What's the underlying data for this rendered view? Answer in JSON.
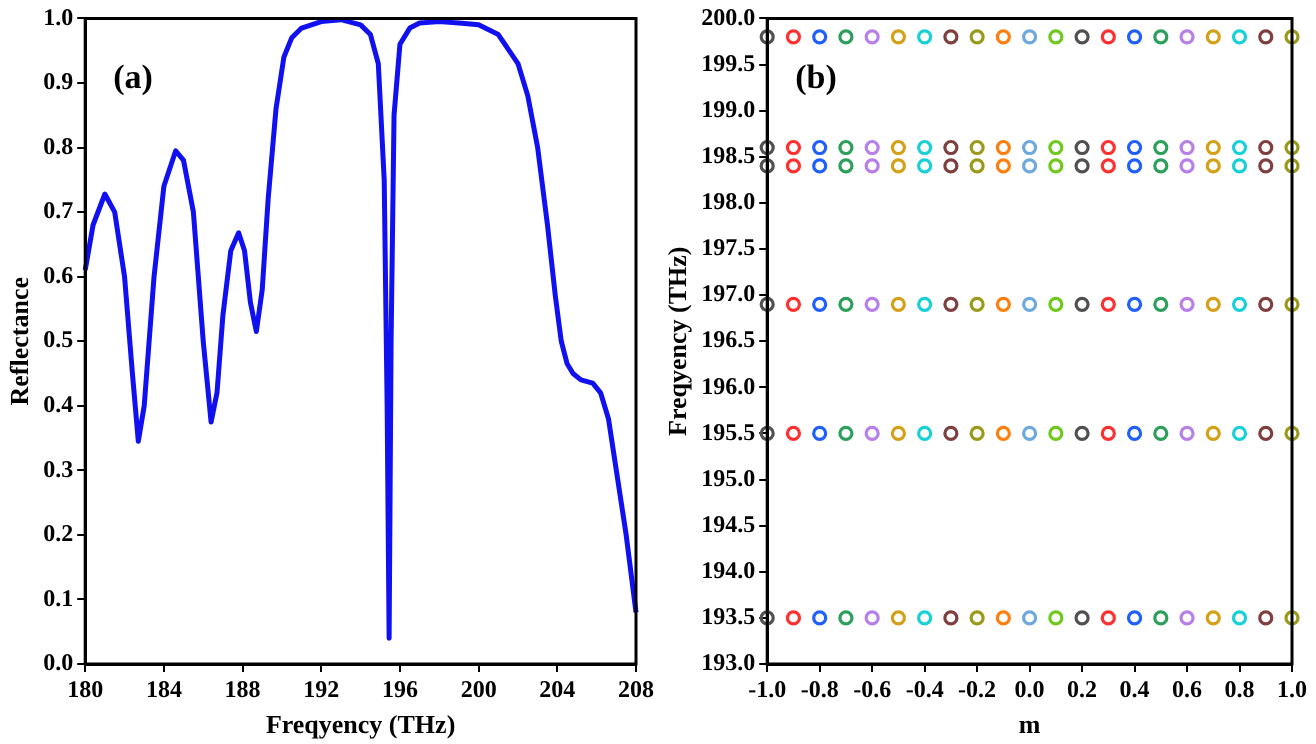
{
  "chart_data": [
    {
      "type": "line",
      "xlabel": "Freqyency (THz)",
      "ylabel": "Reflectance",
      "annotations": [
        "(a)"
      ],
      "grid": false,
      "legend": false,
      "marker": "none",
      "line_style": "solid",
      "xlim": [
        180,
        208
      ],
      "xticks": [
        180,
        184,
        188,
        192,
        196,
        200,
        204,
        208
      ],
      "ylim": [
        0,
        1
      ],
      "yticks": [
        {
          "value": 0,
          "label": "0.0"
        },
        0.1,
        0.2,
        0.3,
        0.4,
        0.5,
        0.6,
        0.7,
        0.8,
        0.9,
        {
          "value": 1,
          "label": "1.0"
        }
      ],
      "series": [
        {
          "color": "#1010f0",
          "x": [
            180,
            180.4,
            181,
            181.5,
            182,
            182.4,
            182.7,
            183,
            183.5,
            184,
            184.6,
            185,
            185.5,
            186,
            186.4,
            186.7,
            187,
            187.4,
            187.8,
            188.1,
            188.4,
            188.7,
            189,
            189.3,
            189.7,
            190.1,
            190.5,
            191,
            192,
            193,
            194,
            194.5,
            194.9,
            195.2,
            195.35,
            195.45,
            195.55,
            195.7,
            196,
            196.5,
            197,
            198,
            199,
            200,
            201,
            202,
            202.5,
            203,
            203.5,
            203.9,
            204.2,
            204.5,
            204.8,
            205.2,
            205.8,
            206.2,
            206.6,
            207,
            207.5,
            208
          ],
          "values": [
            0.61,
            0.68,
            0.728,
            0.7,
            0.6,
            0.45,
            0.345,
            0.4,
            0.6,
            0.74,
            0.795,
            0.78,
            0.7,
            0.5,
            0.375,
            0.42,
            0.54,
            0.64,
            0.668,
            0.64,
            0.56,
            0.515,
            0.58,
            0.72,
            0.86,
            0.94,
            0.97,
            0.985,
            0.995,
            0.998,
            0.99,
            0.975,
            0.93,
            0.75,
            0.4,
            0.04,
            0.5,
            0.85,
            0.96,
            0.985,
            0.993,
            0.995,
            0.993,
            0.99,
            0.975,
            0.93,
            0.88,
            0.8,
            0.68,
            0.57,
            0.5,
            0.465,
            0.45,
            0.44,
            0.435,
            0.42,
            0.38,
            0.3,
            0.2,
            0.08
          ]
        }
      ]
    },
    {
      "type": "scatter",
      "xlabel": "m",
      "ylabel": "Freqyency (THz)",
      "annotations": [
        "(b)"
      ],
      "grid": false,
      "legend": false,
      "marker": "circle",
      "xlim": [
        -1,
        1
      ],
      "xticks": [
        {
          "value": -1,
          "label": "-1.0"
        },
        -0.8,
        -0.6,
        -0.4,
        -0.2,
        {
          "value": 0,
          "label": "0.0"
        },
        0.2,
        0.4,
        0.6,
        0.8,
        {
          "value": 1,
          "label": "1.0"
        }
      ],
      "ylim": [
        193,
        200
      ],
      "yticks": [
        {
          "value": 193,
          "label": "193.0"
        },
        193.5,
        {
          "value": 194,
          "label": "194.0"
        },
        194.5,
        {
          "value": 195,
          "label": "195.0"
        },
        195.5,
        {
          "value": 196,
          "label": "196.0"
        },
        196.5,
        {
          "value": 197,
          "label": "197.0"
        },
        197.5,
        {
          "value": 198,
          "label": "198.0"
        },
        198.5,
        {
          "value": 199,
          "label": "199.0"
        },
        199.5,
        {
          "value": 200,
          "label": "200.0"
        }
      ],
      "series": [
        {
          "color": "#505050",
          "x": [
            -1,
            -1,
            -1,
            -1,
            -1,
            -1
          ],
          "values": [
            199.8,
            198.6,
            198.4,
            196.9,
            195.5,
            193.5
          ]
        },
        {
          "color": "#ff3030",
          "x": [
            -0.9,
            -0.9,
            -0.9,
            -0.9,
            -0.9,
            -0.9
          ],
          "values": [
            199.8,
            198.6,
            198.4,
            196.9,
            195.5,
            193.5
          ]
        },
        {
          "color": "#1f5fff",
          "x": [
            -0.8,
            -0.8,
            -0.8,
            -0.8,
            -0.8,
            -0.8
          ],
          "values": [
            199.8,
            198.6,
            198.4,
            196.9,
            195.5,
            193.5
          ]
        },
        {
          "color": "#2ca05a",
          "x": [
            -0.7,
            -0.7,
            -0.7,
            -0.7,
            -0.7,
            -0.7
          ],
          "values": [
            199.8,
            198.6,
            198.4,
            196.9,
            195.5,
            193.5
          ]
        },
        {
          "color": "#b77fe8",
          "x": [
            -0.6,
            -0.6,
            -0.6,
            -0.6,
            -0.6,
            -0.6
          ],
          "values": [
            199.8,
            198.6,
            198.4,
            196.9,
            195.5,
            193.5
          ]
        },
        {
          "color": "#d4a017",
          "x": [
            -0.5,
            -0.5,
            -0.5,
            -0.5,
            -0.5,
            -0.5
          ],
          "values": [
            199.8,
            198.6,
            198.4,
            196.9,
            195.5,
            193.5
          ]
        },
        {
          "color": "#17d0d8",
          "x": [
            -0.4,
            -0.4,
            -0.4,
            -0.4,
            -0.4,
            -0.4
          ],
          "values": [
            199.8,
            198.6,
            198.4,
            196.9,
            195.5,
            193.5
          ]
        },
        {
          "color": "#7f3f3f",
          "x": [
            -0.3,
            -0.3,
            -0.3,
            -0.3,
            -0.3,
            -0.3
          ],
          "values": [
            199.8,
            198.6,
            198.4,
            196.9,
            195.5,
            193.5
          ]
        },
        {
          "color": "#9a9a1a",
          "x": [
            -0.2,
            -0.2,
            -0.2,
            -0.2,
            -0.2,
            -0.2
          ],
          "values": [
            199.8,
            198.6,
            198.4,
            196.9,
            195.5,
            193.5
          ]
        },
        {
          "color": "#ff7f0e",
          "x": [
            -0.1,
            -0.1,
            -0.1,
            -0.1,
            -0.1,
            -0.1
          ],
          "values": [
            199.8,
            198.6,
            198.4,
            196.9,
            195.5,
            193.5
          ]
        },
        {
          "color": "#6fa8dc",
          "x": [
            0,
            0,
            0,
            0,
            0,
            0
          ],
          "values": [
            199.8,
            198.6,
            198.4,
            196.9,
            195.5,
            193.5
          ]
        },
        {
          "color": "#6fc81c",
          "x": [
            0.1,
            0.1,
            0.1,
            0.1,
            0.1,
            0.1
          ],
          "values": [
            199.8,
            198.6,
            198.4,
            196.9,
            195.5,
            193.5
          ]
        },
        {
          "color": "#505050",
          "x": [
            0.2,
            0.2,
            0.2,
            0.2,
            0.2,
            0.2
          ],
          "values": [
            199.8,
            198.6,
            198.4,
            196.9,
            195.5,
            193.5
          ]
        },
        {
          "color": "#ff3030",
          "x": [
            0.3,
            0.3,
            0.3,
            0.3,
            0.3,
            0.3
          ],
          "values": [
            199.8,
            198.6,
            198.4,
            196.9,
            195.5,
            193.5
          ]
        },
        {
          "color": "#1f5fff",
          "x": [
            0.4,
            0.4,
            0.4,
            0.4,
            0.4,
            0.4
          ],
          "values": [
            199.8,
            198.6,
            198.4,
            196.9,
            195.5,
            193.5
          ]
        },
        {
          "color": "#2ca05a",
          "x": [
            0.5,
            0.5,
            0.5,
            0.5,
            0.5,
            0.5
          ],
          "values": [
            199.8,
            198.6,
            198.4,
            196.9,
            195.5,
            193.5
          ]
        },
        {
          "color": "#b77fe8",
          "x": [
            0.6,
            0.6,
            0.6,
            0.6,
            0.6,
            0.6
          ],
          "values": [
            199.8,
            198.6,
            198.4,
            196.9,
            195.5,
            193.5
          ]
        },
        {
          "color": "#d4a017",
          "x": [
            0.7,
            0.7,
            0.7,
            0.7,
            0.7,
            0.7
          ],
          "values": [
            199.8,
            198.6,
            198.4,
            196.9,
            195.5,
            193.5
          ]
        },
        {
          "color": "#17d0d8",
          "x": [
            0.8,
            0.8,
            0.8,
            0.8,
            0.8,
            0.8
          ],
          "values": [
            199.8,
            198.6,
            198.4,
            196.9,
            195.5,
            193.5
          ]
        },
        {
          "color": "#7f3f3f",
          "x": [
            0.9,
            0.9,
            0.9,
            0.9,
            0.9,
            0.9
          ],
          "values": [
            199.8,
            198.6,
            198.4,
            196.9,
            195.5,
            193.5
          ]
        },
        {
          "color": "#9a9a1a",
          "x": [
            1,
            1,
            1,
            1,
            1,
            1
          ],
          "values": [
            199.8,
            198.6,
            198.4,
            196.9,
            195.5,
            193.5
          ]
        }
      ]
    }
  ]
}
